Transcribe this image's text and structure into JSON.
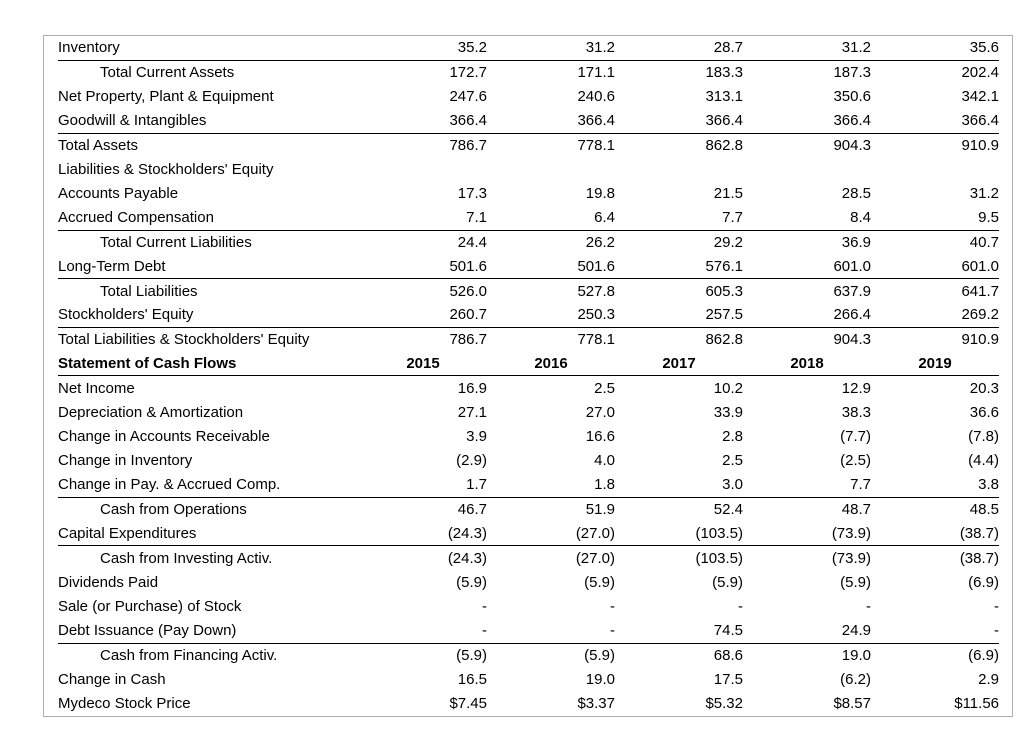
{
  "colors": {
    "background": "#ffffff",
    "frame_border": "#aeaeae",
    "rule_line": "#000000",
    "text": "#000000"
  },
  "table": {
    "columns": [
      "label",
      "2015",
      "2016",
      "2017",
      "2018",
      "2019"
    ],
    "rows": [
      {
        "label": "Inventory",
        "values": [
          "35.2",
          "31.2",
          "28.7",
          "31.2",
          "35.6"
        ],
        "indent": false,
        "bold": false,
        "rule_below": true
      },
      {
        "label": "Total Current Assets",
        "values": [
          "172.7",
          "171.1",
          "183.3",
          "187.3",
          "202.4"
        ],
        "indent": true,
        "bold": false,
        "rule_below": false
      },
      {
        "label": "Net Property, Plant & Equipment",
        "values": [
          "247.6",
          "240.6",
          "313.1",
          "350.6",
          "342.1"
        ],
        "indent": false,
        "bold": false,
        "rule_below": false
      },
      {
        "label": "Goodwill & Intangibles",
        "values": [
          "366.4",
          "366.4",
          "366.4",
          "366.4",
          "366.4"
        ],
        "indent": false,
        "bold": false,
        "rule_below": true
      },
      {
        "label": "Total Assets",
        "values": [
          "786.7",
          "778.1",
          "862.8",
          "904.3",
          "910.9"
        ],
        "indent": false,
        "bold": false,
        "rule_below": false
      },
      {
        "label": "Liabilities & Stockholders' Equity",
        "values": [
          "",
          "",
          "",
          "",
          ""
        ],
        "indent": false,
        "bold": false,
        "rule_below": false
      },
      {
        "label": "Accounts Payable",
        "values": [
          "17.3",
          "19.8",
          "21.5",
          "28.5",
          "31.2"
        ],
        "indent": false,
        "bold": false,
        "rule_below": false
      },
      {
        "label": "Accrued Compensation",
        "values": [
          "7.1",
          "6.4",
          "7.7",
          "8.4",
          "9.5"
        ],
        "indent": false,
        "bold": false,
        "rule_below": true
      },
      {
        "label": "Total Current Liabilities",
        "values": [
          "24.4",
          "26.2",
          "29.2",
          "36.9",
          "40.7"
        ],
        "indent": true,
        "bold": false,
        "rule_below": false
      },
      {
        "label": "Long-Term Debt",
        "values": [
          "501.6",
          "501.6",
          "576.1",
          "601.0",
          "601.0"
        ],
        "indent": false,
        "bold": false,
        "rule_below": true
      },
      {
        "label": "Total Liabilities",
        "values": [
          "526.0",
          "527.8",
          "605.3",
          "637.9",
          "641.7"
        ],
        "indent": true,
        "bold": false,
        "rule_below": false
      },
      {
        "label": "Stockholders' Equity",
        "values": [
          "260.7",
          "250.3",
          "257.5",
          "266.4",
          "269.2"
        ],
        "indent": false,
        "bold": false,
        "rule_below": true
      },
      {
        "label": "Total Liabilities & Stockholders' Equity",
        "values": [
          "786.7",
          "778.1",
          "862.8",
          "904.3",
          "910.9"
        ],
        "indent": false,
        "bold": false,
        "rule_below": false
      },
      {
        "label": "Statement of Cash Flows",
        "values": [
          "2015",
          "2016",
          "2017",
          "2018",
          "2019"
        ],
        "indent": false,
        "bold": true,
        "rule_below": true
      },
      {
        "label": "Net Income",
        "values": [
          "16.9",
          "2.5",
          "10.2",
          "12.9",
          "20.3"
        ],
        "indent": false,
        "bold": false,
        "rule_below": false
      },
      {
        "label": "Depreciation & Amortization",
        "values": [
          "27.1",
          "27.0",
          "33.9",
          "38.3",
          "36.6"
        ],
        "indent": false,
        "bold": false,
        "rule_below": false
      },
      {
        "label": "Change in Accounts Receivable",
        "values": [
          "3.9",
          "16.6",
          "2.8",
          "(7.7)",
          "(7.8)"
        ],
        "indent": false,
        "bold": false,
        "rule_below": false
      },
      {
        "label": "Change in Inventory",
        "values": [
          "(2.9)",
          "4.0",
          "2.5",
          "(2.5)",
          "(4.4)"
        ],
        "indent": false,
        "bold": false,
        "rule_below": false
      },
      {
        "label": "Change in Pay. & Accrued Comp.",
        "values": [
          "1.7",
          "1.8",
          "3.0",
          "7.7",
          "3.8"
        ],
        "indent": false,
        "bold": false,
        "rule_below": true
      },
      {
        "label": "Cash from Operations",
        "values": [
          "46.7",
          "51.9",
          "52.4",
          "48.7",
          "48.5"
        ],
        "indent": true,
        "bold": false,
        "rule_below": false
      },
      {
        "label": "Capital Expenditures",
        "values": [
          "(24.3)",
          "(27.0)",
          "(103.5)",
          "(73.9)",
          "(38.7)"
        ],
        "indent": false,
        "bold": false,
        "rule_below": true
      },
      {
        "label": "Cash from Investing Activ.",
        "values": [
          "(24.3)",
          "(27.0)",
          "(103.5)",
          "(73.9)",
          "(38.7)"
        ],
        "indent": true,
        "bold": false,
        "rule_below": false
      },
      {
        "label": "Dividends Paid",
        "values": [
          "(5.9)",
          "(5.9)",
          "(5.9)",
          "(5.9)",
          "(6.9)"
        ],
        "indent": false,
        "bold": false,
        "rule_below": false
      },
      {
        "label": "Sale (or Purchase) of Stock",
        "values": [
          "-",
          "-",
          "-",
          "-",
          "-"
        ],
        "indent": false,
        "bold": false,
        "rule_below": false
      },
      {
        "label": "Debt Issuance (Pay Down)",
        "values": [
          "-",
          "-",
          "74.5",
          "24.9",
          "-"
        ],
        "indent": false,
        "bold": false,
        "rule_below": true
      },
      {
        "label": "Cash from Financing Activ.",
        "values": [
          "(5.9)",
          "(5.9)",
          "68.6",
          "19.0",
          "(6.9)"
        ],
        "indent": true,
        "bold": false,
        "rule_below": false
      },
      {
        "label": "Change in Cash",
        "values": [
          "16.5",
          "19.0",
          "17.5",
          "(6.2)",
          "2.9"
        ],
        "indent": false,
        "bold": false,
        "rule_below": false
      },
      {
        "label": "Mydeco Stock Price",
        "values": [
          "$7.45",
          "$3.37",
          "$5.32",
          "$8.57",
          "$11.56"
        ],
        "indent": false,
        "bold": false,
        "rule_below": false
      }
    ]
  }
}
